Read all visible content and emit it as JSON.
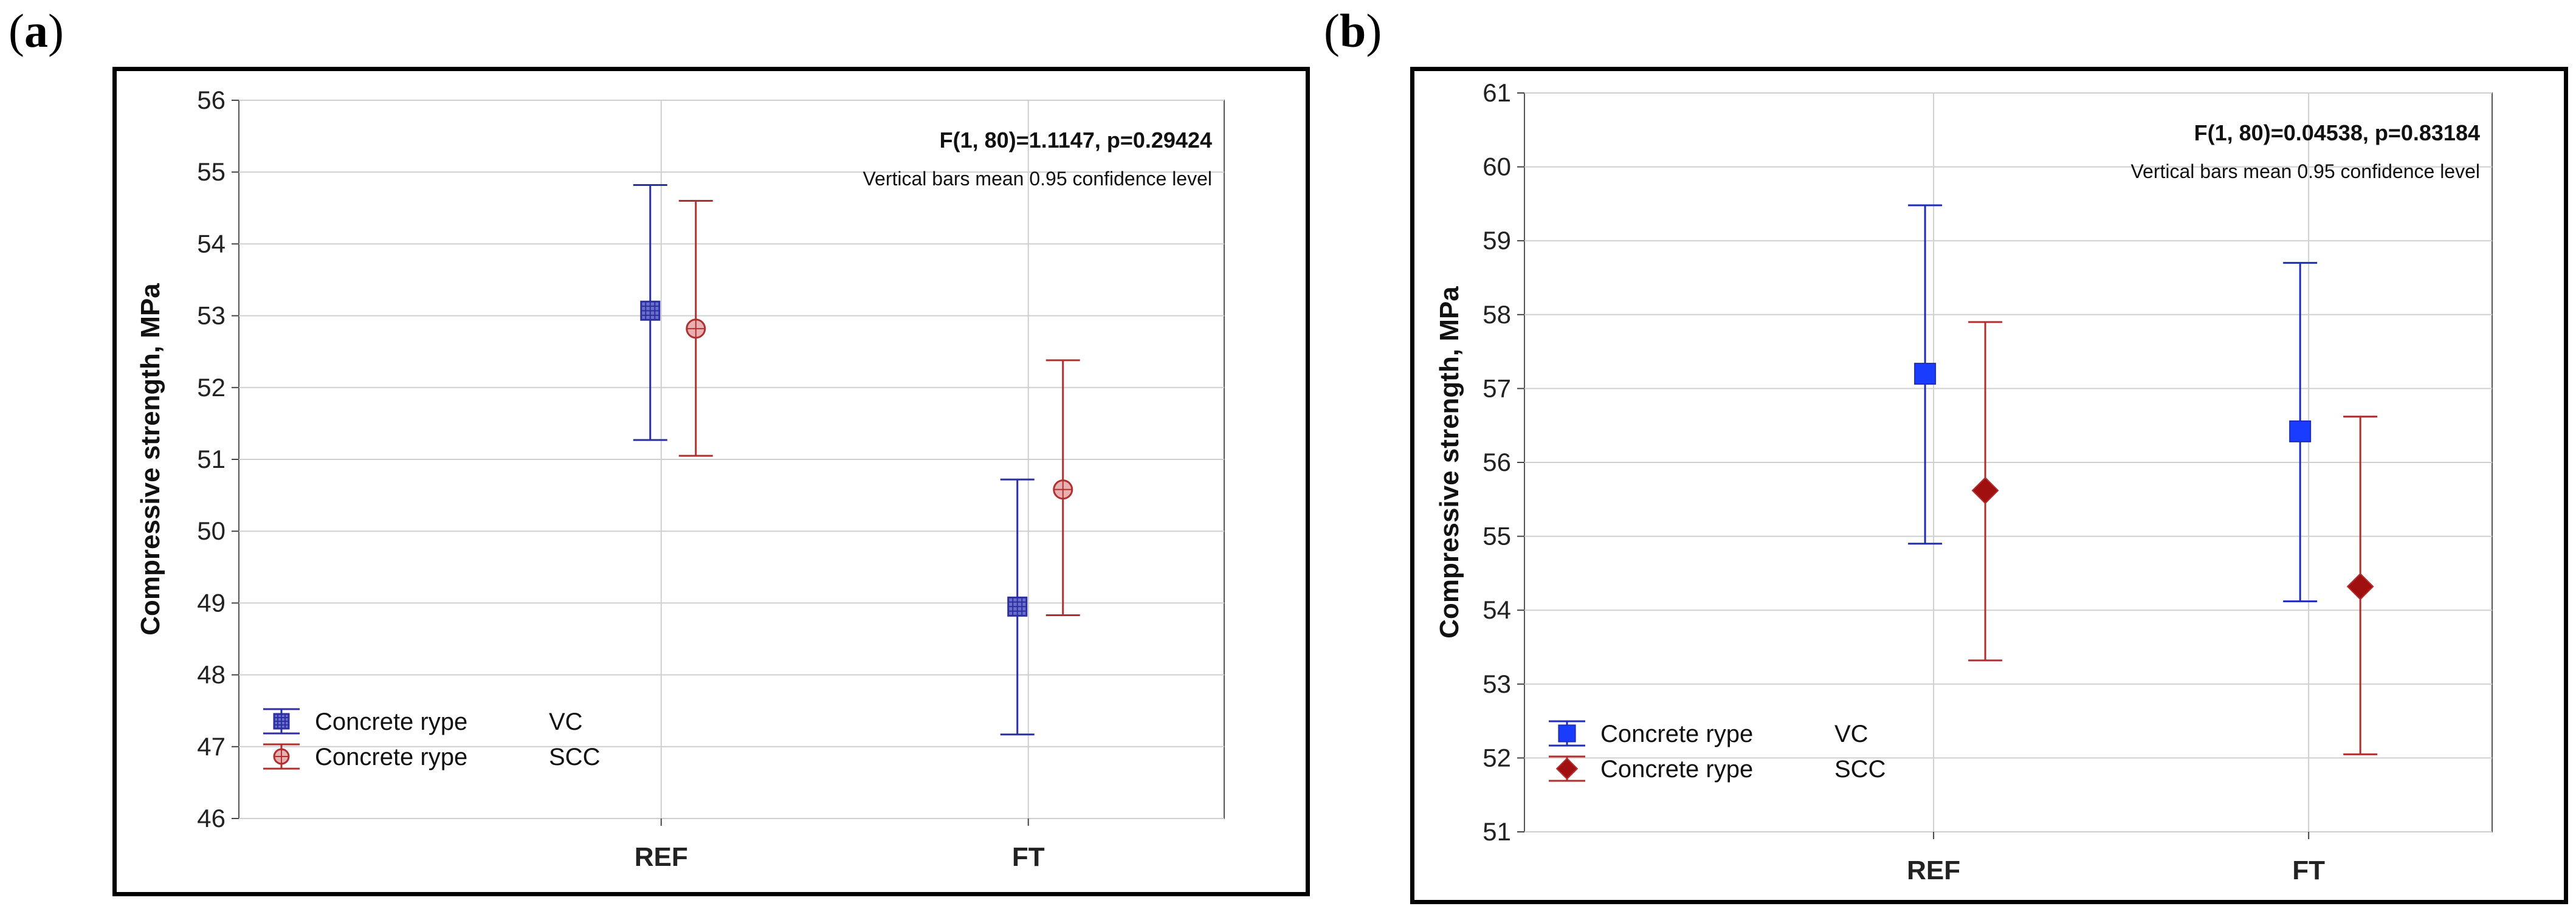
{
  "charts": [
    {
      "panel_label": "a",
      "chart_data": {
        "type": "errorbar",
        "categories": [
          "REF",
          "FT"
        ],
        "ylabel": "Compressive strength, MPa",
        "ylim": [
          46,
          56
        ],
        "yticks": [
          46,
          47,
          48,
          49,
          50,
          51,
          52,
          53,
          54,
          55,
          56
        ],
        "grid": true,
        "annotation": "F(1, 80)=1.1147, p=0.29424",
        "note": "Vertical bars mean 0.95 confidence level",
        "legend_position": "bottom-left",
        "series": [
          {
            "name": "VC",
            "legend_label": "Concrete rype",
            "color": "#2b2fa3",
            "marker": "square-hatched",
            "means": [
              53.07,
              48.95
            ],
            "lower": [
              51.27,
              47.17
            ],
            "upper": [
              54.82,
              50.72
            ]
          },
          {
            "name": "SCC",
            "legend_label": "Concrete rype",
            "color": "#b03030",
            "marker": "circle-hatched",
            "means": [
              52.82,
              50.58
            ],
            "lower": [
              51.05,
              48.83
            ],
            "upper": [
              54.6,
              52.38
            ]
          }
        ]
      }
    },
    {
      "panel_label": "b",
      "chart_data": {
        "type": "errorbar",
        "categories": [
          "REF",
          "FT"
        ],
        "ylabel": "Compressive strength, MPa",
        "ylim": [
          51,
          61
        ],
        "yticks": [
          51,
          52,
          53,
          54,
          55,
          56,
          57,
          58,
          59,
          60,
          61
        ],
        "grid": true,
        "annotation": "F(1, 80)=0.04538, p=0.83184",
        "note": "Vertical bars mean 0.95 confidence level",
        "legend_position": "bottom-left",
        "series": [
          {
            "name": "VC",
            "legend_label": "Concrete rype",
            "color": "#1f2db8",
            "fill": "#1a3cff",
            "marker": "square",
            "means": [
              57.2,
              56.42
            ],
            "lower": [
              54.9,
              54.12
            ],
            "upper": [
              59.48,
              58.7
            ]
          },
          {
            "name": "SCC",
            "legend_label": "Concrete rype",
            "color": "#b03030",
            "fill": "#a01010",
            "marker": "diamond",
            "means": [
              55.62,
              54.32
            ],
            "lower": [
              53.32,
              52.05
            ],
            "upper": [
              57.9,
              56.62
            ]
          }
        ]
      }
    }
  ]
}
